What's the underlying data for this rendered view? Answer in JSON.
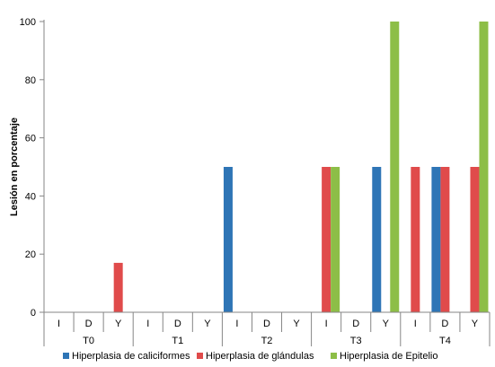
{
  "chart_data": {
    "type": "bar",
    "ylabel": "Lesión en porcentaje",
    "ylim": [
      0,
      100
    ],
    "yticks": [
      0,
      20,
      40,
      60,
      80,
      100
    ],
    "grid": false,
    "legend_position": "bottom",
    "groups": [
      {
        "label": "T0",
        "categories": [
          "I",
          "D",
          "Y"
        ]
      },
      {
        "label": "T1",
        "categories": [
          "I",
          "D",
          "Y"
        ]
      },
      {
        "label": "T2",
        "categories": [
          "I",
          "D",
          "Y"
        ]
      },
      {
        "label": "T3",
        "categories": [
          "I",
          "D",
          "Y"
        ]
      },
      {
        "label": "T4",
        "categories": [
          "I",
          "D",
          "Y"
        ]
      }
    ],
    "series": [
      {
        "name": "Hiperplasia de caliciformes",
        "color": "#2E75B6",
        "values": [
          0,
          0,
          0,
          0,
          0,
          0,
          50,
          0,
          0,
          0,
          0,
          50,
          0,
          50,
          0
        ]
      },
      {
        "name": "Hiperplasia de glándulas",
        "color": "#E04B4B",
        "values": [
          0,
          0,
          17,
          0,
          0,
          0,
          0,
          0,
          0,
          50,
          0,
          0,
          50,
          50,
          50
        ]
      },
      {
        "name": "Hiperplasia de Epitelio",
        "color": "#8DBE47",
        "values": [
          0,
          0,
          0,
          0,
          0,
          0,
          0,
          0,
          0,
          50,
          0,
          100,
          0,
          0,
          100
        ]
      }
    ]
  }
}
